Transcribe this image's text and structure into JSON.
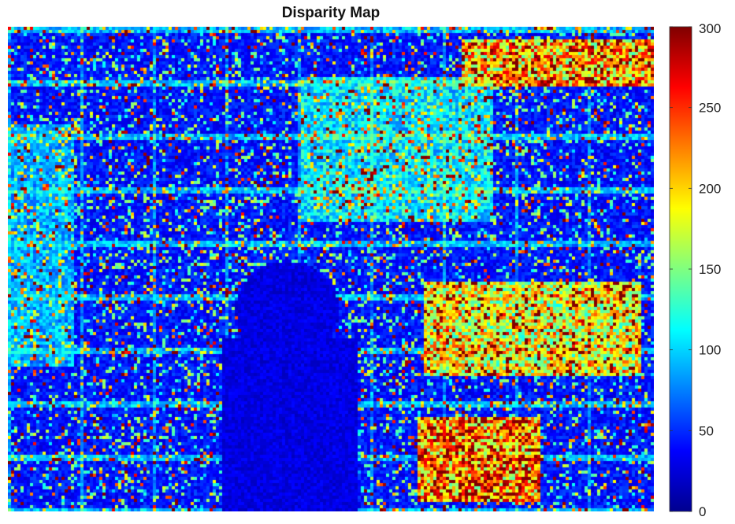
{
  "chart_data": {
    "type": "heatmap",
    "title": "Disparity Map",
    "xlabel": "",
    "ylabel": "",
    "colormap": "jet",
    "grid": false,
    "axes_visible": false,
    "colorbar": {
      "position": "right",
      "range": [
        0,
        300
      ],
      "ticks": [
        0,
        50,
        100,
        150,
        200,
        250,
        300
      ],
      "tick_labels": [
        "0",
        "50",
        "100",
        "150",
        "200",
        "250",
        "300"
      ]
    },
    "value_range": [
      0,
      300
    ],
    "dominant_value_range": [
      20,
      80
    ],
    "high_value_regions": [
      "top-right",
      "bottom-center",
      "right-middle"
    ]
  }
}
